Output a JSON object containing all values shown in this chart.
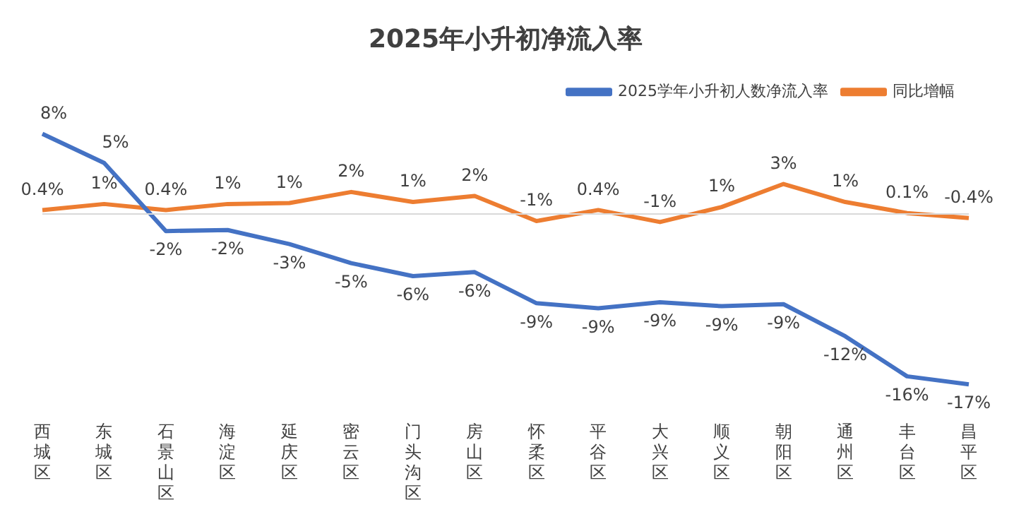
{
  "chart_data": {
    "type": "line",
    "title": "2025年小升初净流入率",
    "categories": [
      "西城区",
      "东城区",
      "石景山区",
      "海淀区",
      "延庆区",
      "密云区",
      "门头沟区",
      "房山区",
      "怀柔区",
      "平谷区",
      "大兴区",
      "顺义区",
      "朝阳区",
      "通州区",
      "丰台区",
      "昌平区"
    ],
    "series": [
      {
        "name": "2025学年小升初人数净流入率",
        "color": "#4472c4",
        "values": [
          8.0,
          5.1,
          -1.7,
          -1.6,
          -3.0,
          -4.9,
          -6.2,
          -5.8,
          -8.9,
          -9.4,
          -8.8,
          -9.2,
          -9.0,
          -12.2,
          -16.2,
          -17.0
        ],
        "value_labels": [
          "8%",
          "5%",
          "-2%",
          "-2%",
          "-3%",
          "-5%",
          "-6%",
          "-6%",
          "-9%",
          "-9%",
          "-9%",
          "-9%",
          "-9%",
          "-12%",
          "-16%",
          "-17%"
        ]
      },
      {
        "name": "同比增幅",
        "color": "#ed7d31",
        "values": [
          0.4,
          1.0,
          0.4,
          1.0,
          1.1,
          2.2,
          1.2,
          1.8,
          -0.7,
          0.4,
          -0.8,
          0.7,
          3.0,
          1.2,
          0.1,
          -0.4
        ],
        "value_labels": [
          "0.4%",
          "1%",
          "0.4%",
          "1%",
          "1%",
          "2%",
          "1%",
          "2%",
          "-1%",
          "0.4%",
          "-1%",
          "1%",
          "3%",
          "1%",
          "0.1%",
          "-0.4%"
        ]
      }
    ],
    "legend": "top right",
    "grid": false,
    "marker": "none",
    "line_style": "solid"
  }
}
